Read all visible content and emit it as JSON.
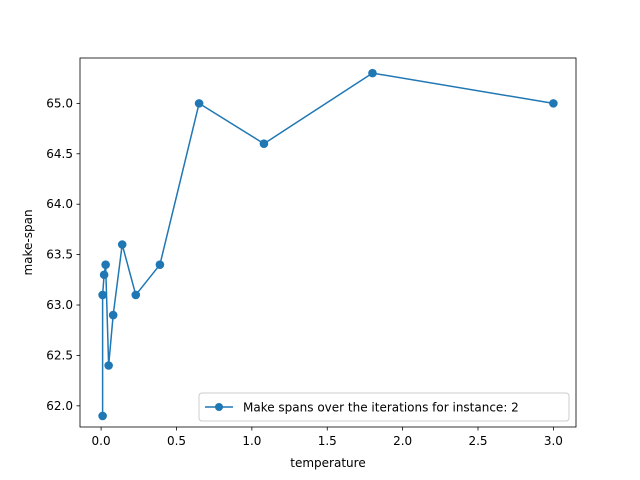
{
  "chart_data": {
    "type": "line",
    "xlabel": "temperature",
    "ylabel": "make-span",
    "xlim": [
      -0.14,
      3.15
    ],
    "ylim": [
      61.79,
      65.45
    ],
    "xticks": [
      0.0,
      0.5,
      1.0,
      1.5,
      2.0,
      2.5,
      3.0
    ],
    "xtick_labels": [
      "0.0",
      "0.5",
      "1.0",
      "1.5",
      "2.0",
      "2.5",
      "3.0"
    ],
    "yticks": [
      62.0,
      62.5,
      63.0,
      63.5,
      64.0,
      64.5,
      65.0
    ],
    "ytick_labels": [
      "62.0",
      "62.5",
      "63.0",
      "63.5",
      "64.0",
      "64.5",
      "65.0"
    ],
    "grid": false,
    "legend_position": "lower-right",
    "series": [
      {
        "name": "Make spans over the iterations for instance: 2",
        "color": "#1f77b4",
        "marker": "circle",
        "x": [
          0.01,
          0.01,
          0.02,
          0.03,
          0.05,
          0.08,
          0.14,
          0.23,
          0.39,
          0.65,
          1.08,
          1.8,
          3.0
        ],
        "y": [
          61.9,
          63.1,
          63.3,
          63.4,
          62.4,
          62.9,
          63.6,
          63.1,
          63.4,
          65.0,
          64.6,
          65.3,
          65.0
        ]
      }
    ]
  }
}
